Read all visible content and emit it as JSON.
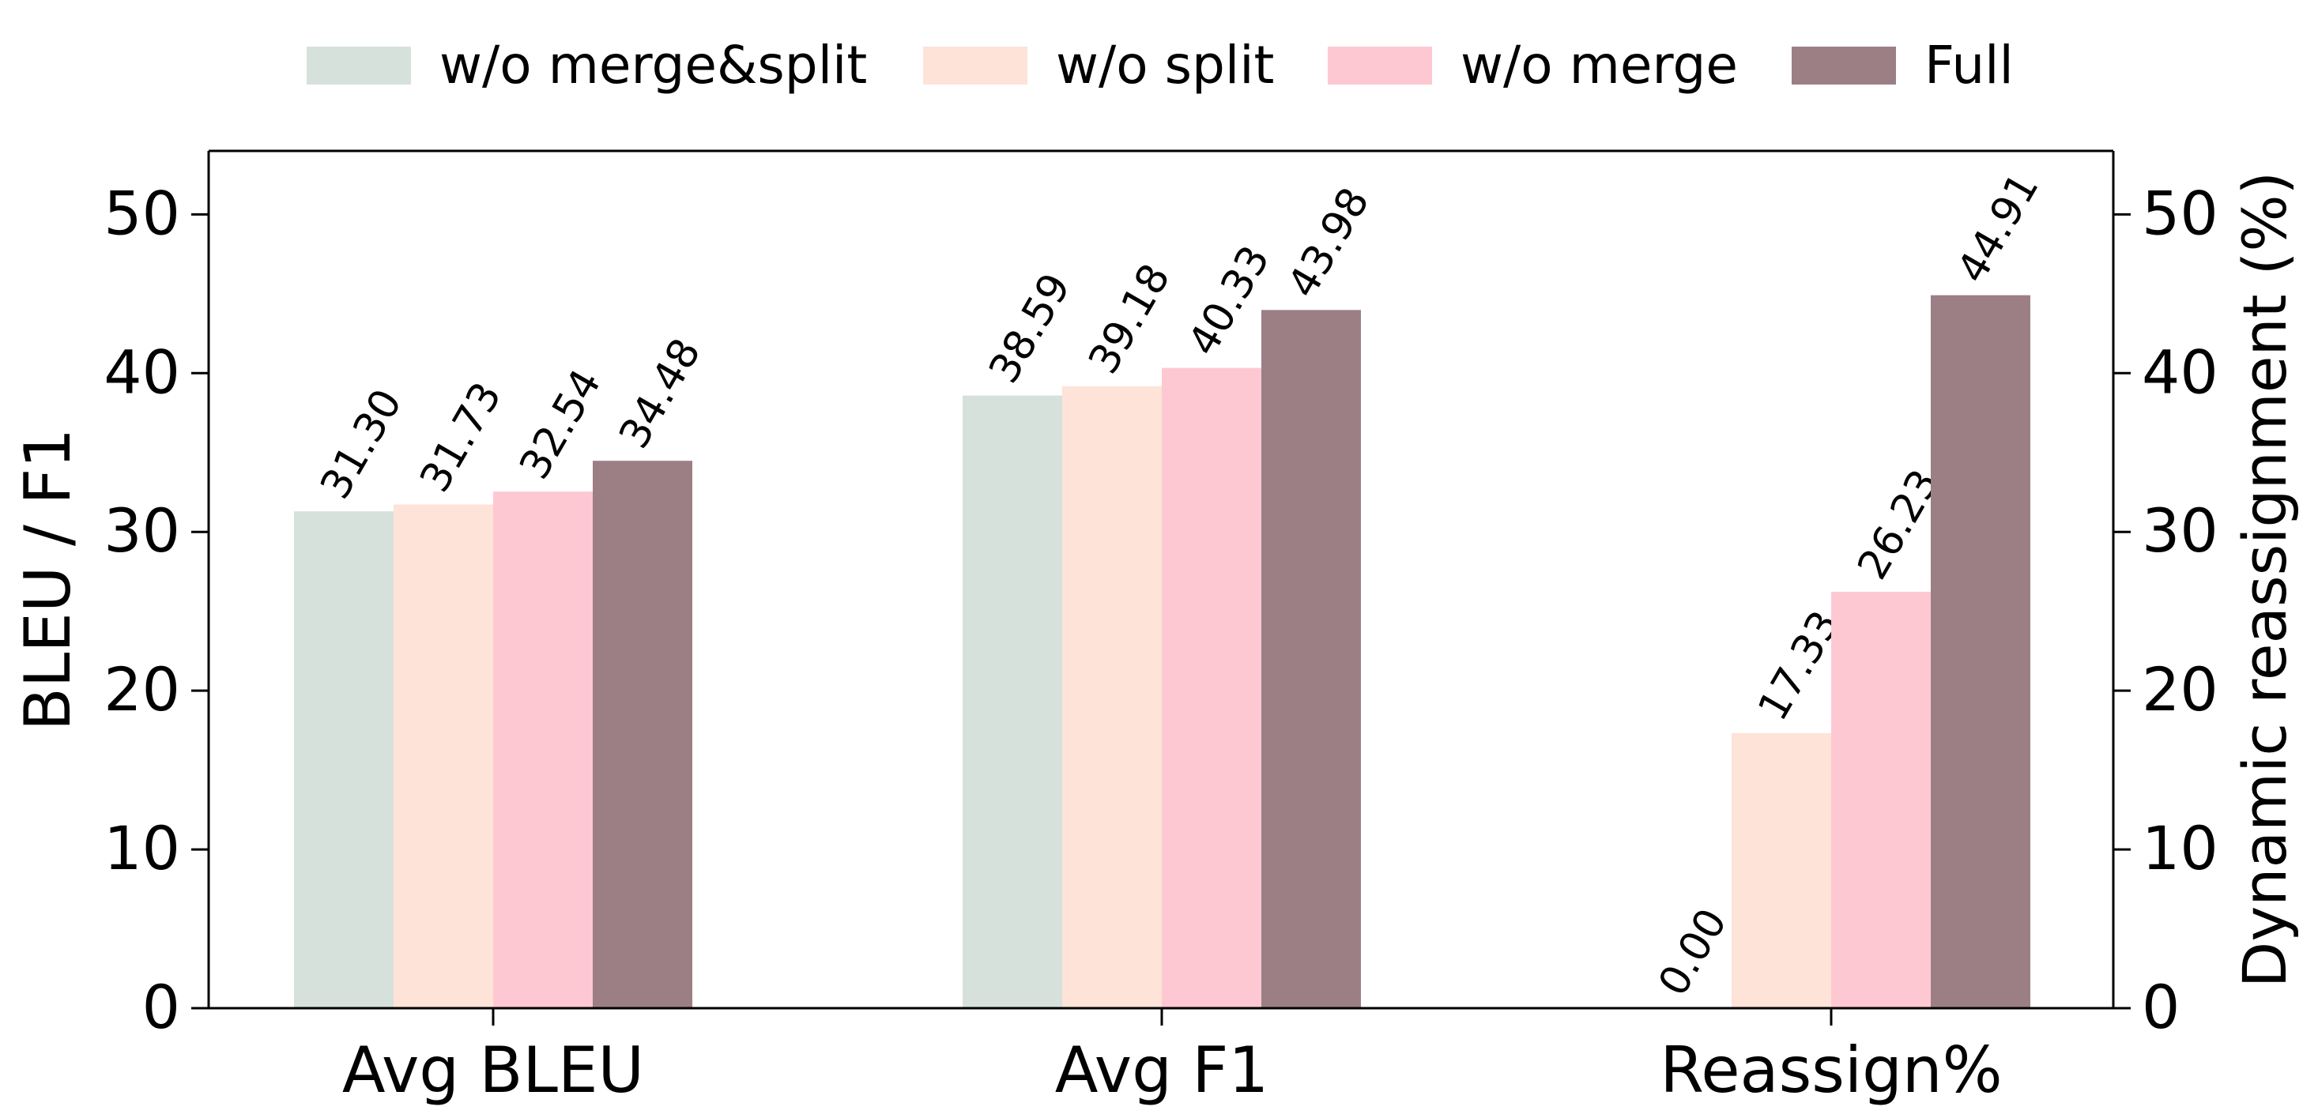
{
  "chart_data": {
    "type": "bar",
    "categories": [
      "Avg BLEU",
      "Avg F1",
      "Reassign%"
    ],
    "series": [
      {
        "name": "w/o merge&split",
        "values": [
          31.3,
          38.59,
          0.0
        ],
        "color": "#d7e1db"
      },
      {
        "name": "w/o split",
        "values": [
          31.73,
          39.18,
          17.33
        ],
        "color": "#fde3d8"
      },
      {
        "name": "w/o merge",
        "values": [
          32.54,
          40.33,
          26.23
        ],
        "color": "#fec8d2"
      },
      {
        "name": "Full",
        "values": [
          34.48,
          43.98,
          44.91
        ],
        "color": "#9c7f85"
      }
    ],
    "data_labels": [
      [
        "31.30",
        "38.59",
        "0.00"
      ],
      [
        "31.73",
        "39.18",
        "17.33"
      ],
      [
        "32.54",
        "40.33",
        "26.23"
      ],
      [
        "34.48",
        "43.98",
        "44.91"
      ]
    ],
    "ylabel": "BLEU / F1",
    "y2label": "Dynamic reassignment (%)",
    "ylim": [
      0,
      54
    ],
    "y2lim": [
      0,
      54
    ],
    "yticks": [
      "0",
      "10",
      "20",
      "30",
      "40",
      "50"
    ],
    "y2ticks": [
      "0",
      "10",
      "20",
      "30",
      "40",
      "50"
    ],
    "grid": false,
    "legend_position": "top-center"
  }
}
